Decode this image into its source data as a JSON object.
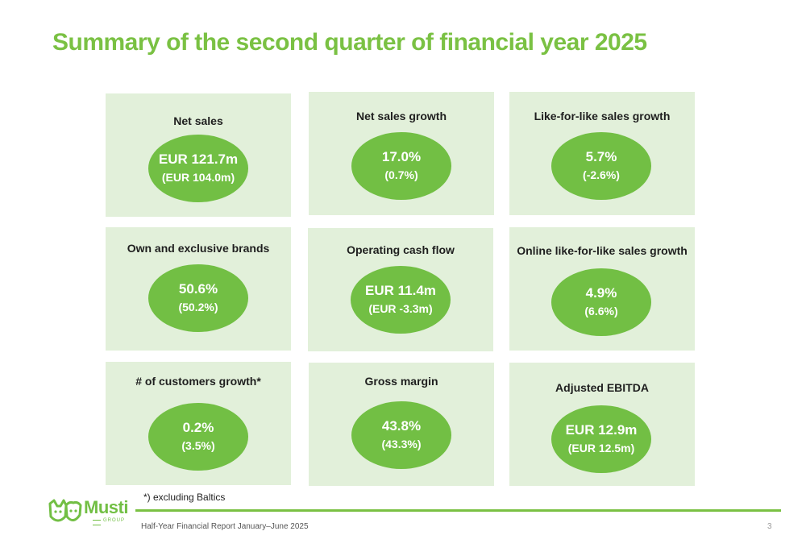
{
  "title": "Summary of the second quarter of financial year 2025",
  "kpis": [
    {
      "label": "Net sales",
      "value": "EUR 121.7m",
      "previous": "(EUR 104.0m)"
    },
    {
      "label": "Net sales growth",
      "value": "17.0%",
      "previous": "(0.7%)"
    },
    {
      "label": "Like-for-like sales growth",
      "value": "5.7%",
      "previous": "(-2.6%)"
    },
    {
      "label": "Own and exclusive brands",
      "value": "50.6%",
      "previous": "(50.2%)"
    },
    {
      "label": "Operating cash flow",
      "value": "EUR 11.4m",
      "previous": "(EUR -3.3m)"
    },
    {
      "label": "Online like-for-like sales growth",
      "value": "4.9%",
      "previous": "(6.6%)"
    },
    {
      "label": "# of customers growth*",
      "value": "0.2%",
      "previous": "(3.5%)"
    },
    {
      "label": "Gross margin",
      "value": "43.8%",
      "previous": "(43.3%)"
    },
    {
      "label": "Adjusted EBITDA",
      "value": "EUR 12.9m",
      "previous": "(EUR 12.5m)"
    }
  ],
  "footnote": "*) excluding Baltics",
  "footer": {
    "report": "Half-Year Financial Report January–June 2025",
    "page_number": "3"
  },
  "logo": {
    "name": "Musti",
    "subtitle": "GROUP",
    "icon": "cat-and-dog-icon"
  },
  "colors": {
    "accent": "#7ac143",
    "ellipse": "#72bf44",
    "card_background": "#e2f0da"
  }
}
